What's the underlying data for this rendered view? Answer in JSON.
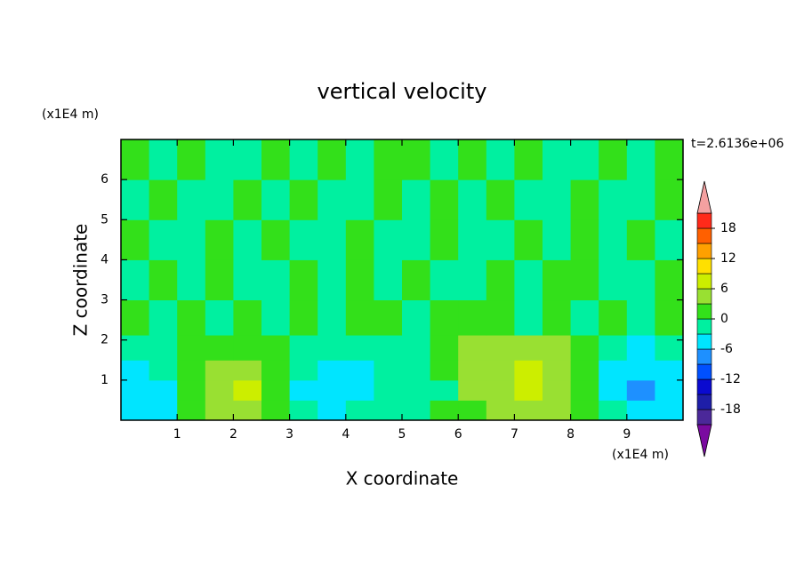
{
  "chart_data": {
    "type": "contour",
    "title": "vertical velocity",
    "x_label": "X coordinate",
    "y_label": "Z coordinate",
    "x_unit": "(x1E4 m)",
    "y_unit": "(x1E4 m)",
    "annotation": "t=2.6136e+06",
    "x": [
      0.25,
      0.75,
      1.25,
      1.75,
      2.25,
      2.75,
      3.25,
      3.75,
      4.25,
      4.75,
      5.25,
      5.75,
      6.25,
      6.75,
      7.25,
      7.75,
      8.25,
      8.75,
      9.25,
      9.75
    ],
    "z": [
      0.25,
      0.75,
      1.25,
      1.75,
      2.5,
      3.5,
      4.5,
      5.5,
      6.5
    ],
    "values": [
      [
        -4,
        -4,
        1,
        4,
        4,
        1,
        -1,
        -4,
        -1,
        -1,
        -1,
        1,
        1,
        4,
        4,
        4,
        1,
        -1,
        -4,
        -4
      ],
      [
        -4,
        -4,
        1,
        4,
        7,
        1,
        -4,
        -4,
        -4,
        -1,
        -1,
        -1,
        4,
        4,
        7,
        4,
        1,
        -4,
        -7,
        -4
      ],
      [
        -4,
        -1,
        1,
        4,
        4,
        1,
        -1,
        -4,
        -4,
        -1,
        -1,
        1,
        4,
        4,
        7,
        4,
        1,
        -4,
        -4,
        -4
      ],
      [
        -1,
        -1,
        1,
        1,
        1,
        1,
        -1,
        -1,
        -1,
        -1,
        -1,
        1,
        4,
        4,
        4,
        4,
        1,
        -1,
        -4,
        -1
      ],
      [
        1,
        -1,
        1,
        -1,
        1,
        -1,
        1,
        -1,
        1,
        1,
        -1,
        1,
        1,
        1,
        -1,
        1,
        -1,
        1,
        -1,
        1
      ],
      [
        -1,
        1,
        -1,
        1,
        -1,
        -1,
        1,
        -1,
        1,
        -1,
        1,
        -1,
        -1,
        1,
        -1,
        1,
        1,
        -1,
        -1,
        1
      ],
      [
        1,
        -1,
        -1,
        1,
        -1,
        1,
        -1,
        -1,
        1,
        -1,
        -1,
        1,
        -1,
        -1,
        1,
        -1,
        1,
        -1,
        1,
        -1
      ],
      [
        -1,
        1,
        -1,
        -1,
        1,
        -1,
        1,
        -1,
        -1,
        1,
        -1,
        1,
        -1,
        1,
        -1,
        -1,
        1,
        -1,
        -1,
        1
      ],
      [
        1,
        -1,
        1,
        -1,
        -1,
        1,
        -1,
        1,
        -1,
        1,
        1,
        -1,
        1,
        -1,
        1,
        -1,
        -1,
        1,
        -1,
        1
      ]
    ],
    "xlim": [
      0,
      10
    ],
    "ylim": [
      0,
      7
    ],
    "xticks": [
      1,
      2,
      3,
      4,
      5,
      6,
      7,
      8,
      9
    ],
    "yticks": [
      1,
      2,
      3,
      4,
      5,
      6
    ],
    "levels": [
      -21,
      -18,
      -15,
      -12,
      -9,
      -6,
      -3,
      0,
      3,
      6,
      9,
      12,
      15,
      18,
      21
    ],
    "colors": [
      "#4b2899",
      "#1e1ea8",
      "#0a0ad0",
      "#0050ff",
      "#1e90ff",
      "#00e5ff",
      "#00f0a0",
      "#33e01a",
      "#99e032",
      "#ccee00",
      "#ffe000",
      "#ffa000",
      "#ff6000",
      "#ff2a1a"
    ],
    "under_color": "#7a0aa0",
    "over_color": "#f4a0a0",
    "colorbar_ticks": [
      -18,
      -12,
      -6,
      0,
      6,
      12,
      18
    ]
  }
}
